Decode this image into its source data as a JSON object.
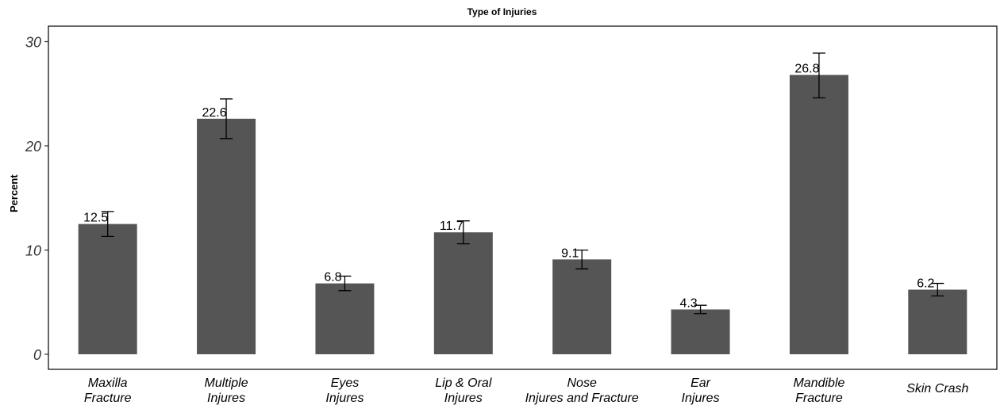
{
  "chart_data": {
    "type": "bar",
    "title": "Type of Injuries",
    "xlabel": "",
    "ylabel": "Percent",
    "ylim": [
      0,
      31
    ],
    "yticks": [
      0,
      10,
      20,
      30
    ],
    "grid": false,
    "bar_color": "#555555",
    "categories": [
      [
        "Maxilla",
        "Fracture"
      ],
      [
        "Multiple",
        "Injures"
      ],
      [
        "Eyes",
        "Injures"
      ],
      [
        "Lip & Oral",
        "Injures"
      ],
      [
        "Nose",
        "Injures and  Fracture"
      ],
      [
        "Ear",
        "Injures"
      ],
      [
        "Mandible",
        "Fracture"
      ],
      [
        "Skin Crash"
      ]
    ],
    "values": [
      12.5,
      22.6,
      6.8,
      11.7,
      9.1,
      4.3,
      26.8,
      6.2
    ],
    "data_labels": [
      "12.5",
      "22.6",
      "6.8",
      "11.7",
      "9.1",
      "4.3",
      "26.8",
      "6.2"
    ],
    "error_low": [
      11.3,
      20.7,
      6.1,
      10.6,
      8.2,
      3.9,
      24.6,
      5.6
    ],
    "error_high": [
      13.7,
      24.5,
      7.5,
      12.8,
      10.0,
      4.7,
      28.9,
      6.8
    ]
  }
}
